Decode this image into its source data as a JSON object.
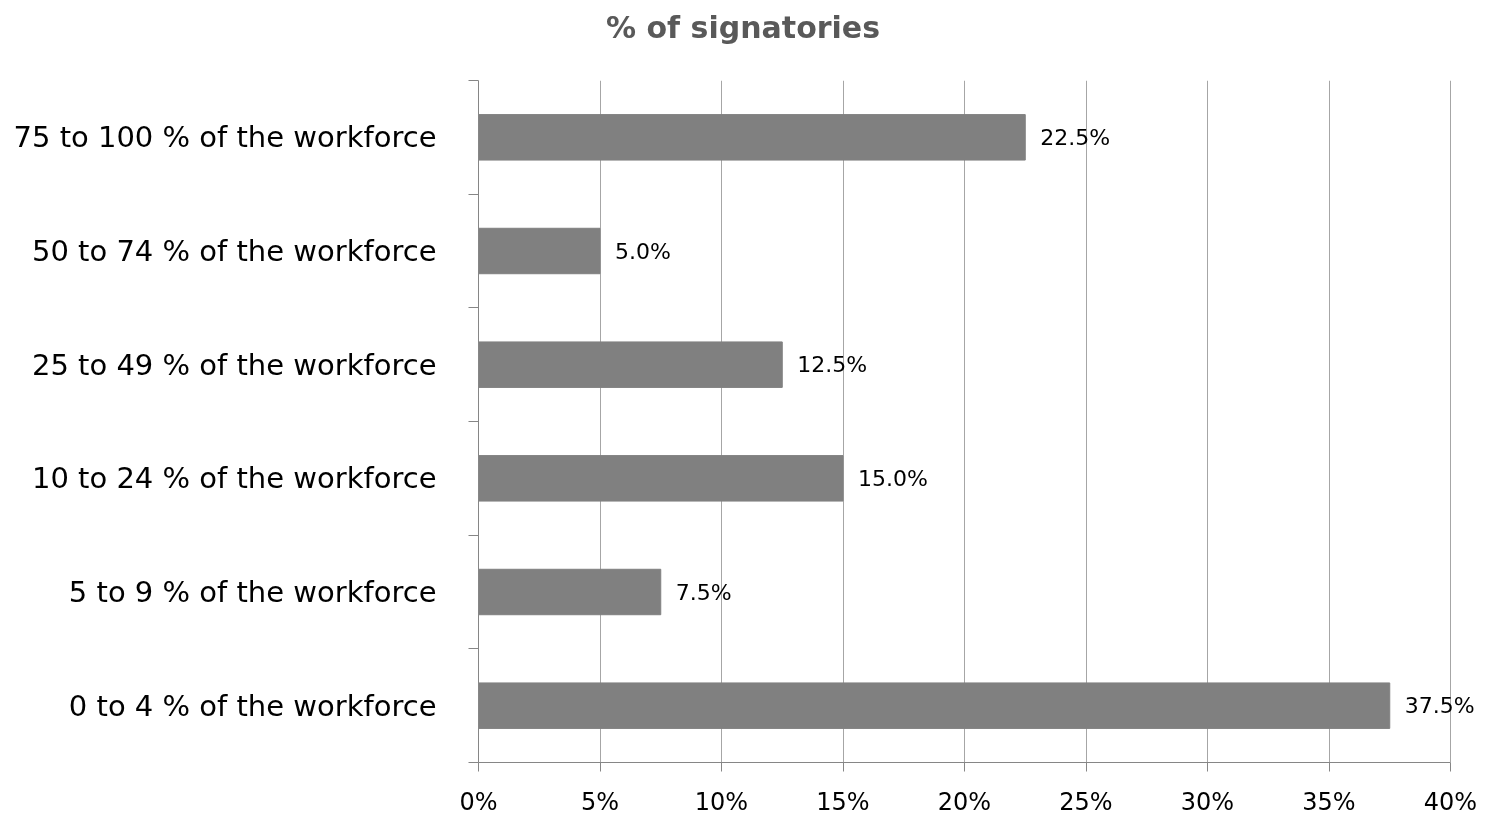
{
  "chart_data": {
    "type": "bar",
    "orientation": "horizontal",
    "title": "% of signatories",
    "categories": [
      "75 to 100 % of the workforce",
      "50 to 74 % of the workforce",
      "25 to 49 % of the workforce",
      "10 to 24 % of the workforce",
      "5 to 9 % of the workforce",
      "0 to 4 % of the workforce"
    ],
    "values": [
      22.5,
      5.0,
      12.5,
      15.0,
      7.5,
      37.5
    ],
    "color": "#808080",
    "value_labels": [
      "22.5%",
      "5.0%",
      "12.5%",
      "15.0%",
      "7.5%",
      "37.5%"
    ],
    "xlim": [
      0,
      40
    ],
    "xticks": [
      {
        "value": 0,
        "label": "0%"
      },
      {
        "value": 5,
        "label": "5%"
      },
      {
        "value": 10,
        "label": "10%"
      },
      {
        "value": 15,
        "label": "15%"
      },
      {
        "value": 20,
        "label": "20%"
      },
      {
        "value": 25,
        "label": "25%"
      },
      {
        "value": 30,
        "label": "30%"
      },
      {
        "value": 35,
        "label": "35%"
      },
      {
        "value": 40,
        "label": "40%"
      }
    ],
    "grid": "x"
  }
}
